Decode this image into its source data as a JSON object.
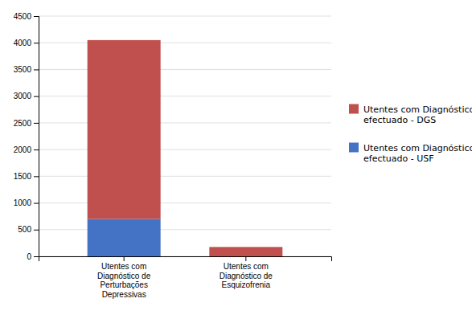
{
  "chart_data": {
    "type": "bar",
    "stacked": true,
    "categories": [
      "Utentes com\nDiagnóstico de\nPerturbações\nDepressivas",
      "Utentes com\nDiagnóstico de\nEsquizofrenia"
    ],
    "series": [
      {
        "name": "Utentes com Diagnóstico\nefectuado - USF",
        "color": "#4472C4",
        "values": [
          700,
          0
        ]
      },
      {
        "name": "Utentes com Diagnóstico\nefectuado - DGS",
        "color": "#C0504D",
        "values": [
          3350,
          175
        ]
      }
    ],
    "ylim": [
      0,
      4500
    ],
    "yticks": [
      0,
      500,
      1000,
      1500,
      2000,
      2500,
      3000,
      3500,
      4000,
      4500
    ],
    "grid": true,
    "legend": "right"
  }
}
